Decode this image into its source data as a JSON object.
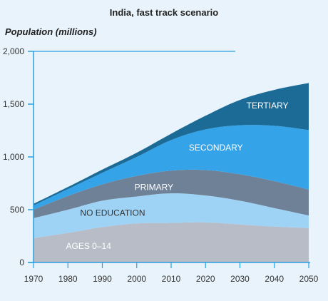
{
  "header": {
    "title": "India, fast track scenario",
    "y_axis_label": "Population (millions)"
  },
  "chart_data": {
    "type": "area",
    "stacked": true,
    "title": "India, fast track scenario",
    "ylabel": "Population (millions)",
    "xlabel": "",
    "x": [
      1970,
      1980,
      1990,
      2000,
      2010,
      2020,
      2030,
      2040,
      2050
    ],
    "ylim": [
      0,
      2000
    ],
    "xlim": [
      1970,
      2050
    ],
    "y_ticks": [
      "0",
      "500",
      "1,000",
      "1,500",
      "2,000"
    ],
    "y_tick_values": [
      0,
      500,
      1000,
      1500,
      2000
    ],
    "x_ticks": [
      "1970",
      "1980",
      "1990",
      "2000",
      "2010",
      "2020",
      "2030",
      "2040",
      "2050"
    ],
    "series": [
      {
        "name": "AGES 0–14",
        "color": "#b8bcc7",
        "label_color": "#ffffff",
        "values": [
          230,
          280,
          335,
          370,
          375,
          380,
          360,
          340,
          325
        ]
      },
      {
        "name": "NO EDUCATION",
        "color": "#9fd3f5",
        "label_color": "#333333",
        "values": [
          190,
          220,
          250,
          255,
          280,
          255,
          225,
          175,
          120
        ]
      },
      {
        "name": "PRIMARY",
        "color": "#6e8197",
        "label_color": "#ffffff",
        "values": [
          80,
          130,
          155,
          195,
          215,
          240,
          250,
          255,
          245
        ]
      },
      {
        "name": "SECONDARY",
        "color": "#35a3e8",
        "label_color": "#ffffff",
        "values": [
          40,
          65,
          110,
          180,
          290,
          385,
          465,
          525,
          565
        ]
      },
      {
        "name": "TERTIARY",
        "color": "#1c6b96",
        "label_color": "#ffffff",
        "values": [
          15,
          20,
          30,
          40,
          60,
          130,
          240,
          340,
          445
        ]
      }
    ],
    "grid": false,
    "legend": "inline labels"
  }
}
